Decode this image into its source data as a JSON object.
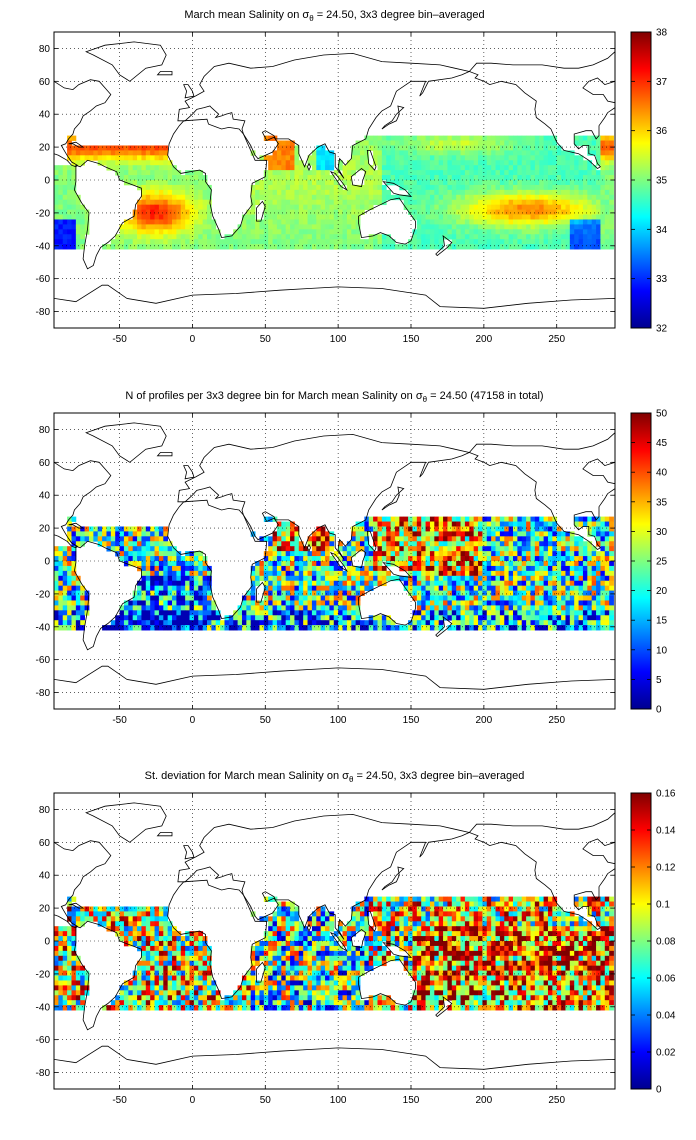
{
  "chart_data": [
    {
      "type": "heatmap",
      "title_pre": "March mean Salinity on ",
      "title_sym": "σ",
      "title_sub": "θ",
      "title_post": " = 24.50, 3x3 degree bin–averaged",
      "xlim": [
        -95,
        290
      ],
      "ylim": [
        -90,
        90
      ],
      "xticks": [
        -50,
        0,
        50,
        100,
        150,
        200,
        250
      ],
      "yticks": [
        -80,
        -60,
        -40,
        -20,
        0,
        20,
        40,
        60,
        80
      ],
      "grid": true,
      "colorbar": {
        "min": 32,
        "max": 38,
        "ticks": [
          32,
          33,
          34,
          35,
          36,
          37,
          38
        ]
      }
    },
    {
      "type": "heatmap",
      "title_pre": "N of profiles per 3x3 degree bin for March mean Salinity on ",
      "title_sym": "σ",
      "title_sub": "θ",
      "title_post": " = 24.50 (47158 in total)",
      "xlim": [
        -95,
        290
      ],
      "ylim": [
        -90,
        90
      ],
      "xticks": [
        -50,
        0,
        50,
        100,
        150,
        200,
        250
      ],
      "yticks": [
        -80,
        -60,
        -40,
        -20,
        0,
        20,
        40,
        60,
        80
      ],
      "grid": true,
      "colorbar": {
        "min": 0,
        "max": 50,
        "ticks": [
          0,
          5,
          10,
          15,
          20,
          25,
          30,
          35,
          40,
          45,
          50
        ]
      }
    },
    {
      "type": "heatmap",
      "title_pre": "St. deviation for March mean Salinity on ",
      "title_sym": "σ",
      "title_sub": "θ",
      "title_post": " = 24.50, 3x3 degree bin–averaged",
      "xlim": [
        -95,
        290
      ],
      "ylim": [
        -90,
        90
      ],
      "xticks": [
        -50,
        0,
        50,
        100,
        150,
        200,
        250
      ],
      "yticks": [
        -80,
        -60,
        -40,
        -20,
        0,
        20,
        40,
        60,
        80
      ],
      "grid": true,
      "colorbar": {
        "min": 0,
        "max": 0.16,
        "ticks": [
          0,
          0.02,
          0.04,
          0.06,
          0.08,
          0.1,
          0.12,
          0.14,
          0.16
        ]
      }
    }
  ]
}
